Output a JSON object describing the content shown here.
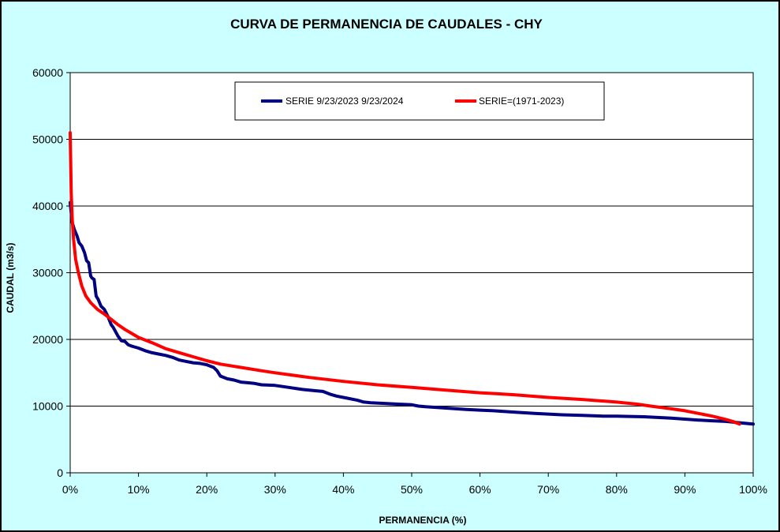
{
  "chart_data": {
    "type": "line",
    "title": "CURVA DE PERMANENCIA DE CAUDALES - CHY",
    "xlabel": "PERMANENCIA (%)",
    "ylabel": "CAUDAL (m3/s)",
    "xlim": [
      0,
      100
    ],
    "ylim": [
      0,
      60000
    ],
    "x_ticks": [
      "0%",
      "10%",
      "20%",
      "30%",
      "40%",
      "50%",
      "60%",
      "70%",
      "80%",
      "90%",
      "100%"
    ],
    "y_ticks": [
      "0",
      "10000",
      "20000",
      "30000",
      "40000",
      "50000",
      "60000"
    ],
    "grid": "horizontal",
    "legend_position": "top-center",
    "colors": {
      "background": "#ccffff",
      "plot_area": "#ffffff",
      "series_1": "#000080",
      "series_2": "#ff0000"
    },
    "series": [
      {
        "name": "SERIE 9/23/2023 9/23/2024",
        "color": "#000080",
        "x": [
          0,
          0.3,
          0.6,
          1,
          1.3,
          1.7,
          2.1,
          2.4,
          2.7,
          3.0,
          3.2,
          3.5,
          3.8,
          4.1,
          4.5,
          5,
          5.5,
          6,
          6.3,
          7,
          7.5,
          8,
          8.5,
          9,
          10,
          11,
          12,
          13,
          14,
          15,
          16,
          17,
          18,
          19,
          20,
          21,
          21.5,
          22,
          23,
          24,
          25,
          26,
          27,
          28,
          30,
          32,
          34,
          36,
          37,
          38,
          39,
          40,
          42,
          43,
          44,
          46,
          48,
          50,
          51,
          52,
          55,
          58,
          60,
          62,
          65,
          68,
          70,
          72,
          75,
          78,
          80,
          82,
          84,
          86,
          88,
          90,
          92,
          94,
          96,
          98,
          100
        ],
        "values": [
          40500,
          37500,
          36500,
          35500,
          34500,
          34000,
          33000,
          31800,
          31500,
          29500,
          29200,
          29000,
          26500,
          26000,
          25000,
          24500,
          23500,
          22200,
          21800,
          20500,
          19800,
          19700,
          19200,
          19000,
          18700,
          18300,
          18000,
          17800,
          17600,
          17300,
          16900,
          16700,
          16500,
          16400,
          16200,
          15800,
          15300,
          14500,
          14100,
          13900,
          13600,
          13500,
          13400,
          13200,
          13100,
          12800,
          12500,
          12300,
          12200,
          11800,
          11500,
          11300,
          10900,
          10600,
          10500,
          10400,
          10300,
          10200,
          10000,
          9900,
          9700,
          9500,
          9400,
          9300,
          9100,
          8900,
          8800,
          8700,
          8600,
          8500,
          8500,
          8450,
          8400,
          8300,
          8200,
          8050,
          7900,
          7800,
          7700,
          7500,
          7300
        ]
      },
      {
        "name": "SERIE=(1971-2023)",
        "color": "#ff0000",
        "x": [
          0,
          0.15,
          0.3,
          0.5,
          0.8,
          1.2,
          1.7,
          2.3,
          3,
          4,
          5,
          6,
          7,
          8,
          9,
          10,
          12,
          14,
          16,
          18,
          20,
          22,
          25,
          28,
          30,
          35,
          40,
          45,
          50,
          55,
          60,
          65,
          70,
          75,
          80,
          83,
          85,
          88,
          90,
          92,
          94,
          96,
          97,
          98
        ],
        "values": [
          51000,
          42000,
          38000,
          35000,
          32000,
          30000,
          28000,
          26500,
          25500,
          24500,
          23800,
          23000,
          22200,
          21500,
          20900,
          20300,
          19500,
          18600,
          18000,
          17400,
          16800,
          16300,
          15800,
          15300,
          15000,
          14300,
          13700,
          13200,
          12800,
          12400,
          12000,
          11700,
          11300,
          11000,
          10600,
          10300,
          10000,
          9600,
          9300,
          8900,
          8500,
          8000,
          7700,
          7300
        ]
      }
    ]
  }
}
